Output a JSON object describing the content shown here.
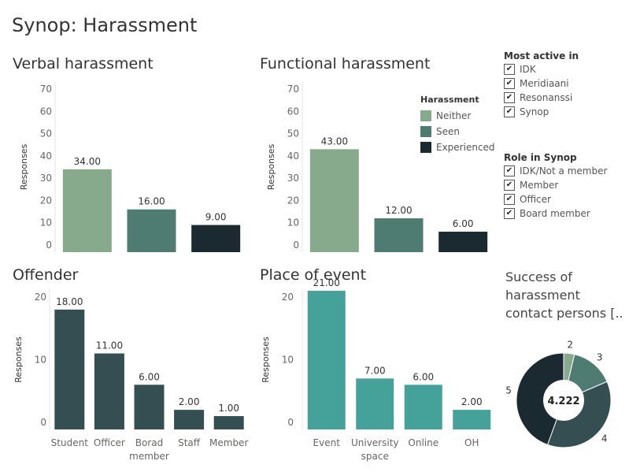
{
  "dashboard": {
    "title": "Synop: Harassment"
  },
  "colors": {
    "neither": "#86aa8b",
    "seen": "#4e7c72",
    "experienced": "#1b2a30",
    "offender_bar": "#354e51",
    "place_bar": "#44a29b",
    "axis_text": "#666666",
    "gridline": "#e6e6e6",
    "donut": [
      "#86aa8b",
      "#4e7c72",
      "#354e51",
      "#1b2a30"
    ]
  },
  "legend": {
    "title": "Harassment",
    "items": [
      {
        "label": "Neither",
        "color": "#86aa8b"
      },
      {
        "label": "Seen",
        "color": "#4e7c72"
      },
      {
        "label": "Experienced",
        "color": "#1b2a30"
      }
    ]
  },
  "filters": {
    "most_active": {
      "title": "Most active in",
      "items": [
        {
          "label": "IDK",
          "checked": true,
          "mark": "✔"
        },
        {
          "label": "Meridiaani",
          "checked": true,
          "mark": "✔"
        },
        {
          "label": "Resonanssi",
          "checked": true,
          "mark": "✔"
        },
        {
          "label": "Synop",
          "checked": true,
          "mark": "✔"
        }
      ]
    },
    "role": {
      "title": "Role in Synop",
      "items": [
        {
          "label": "IDK/Not a member",
          "checked": true,
          "mark": "✔"
        },
        {
          "label": "Member",
          "checked": true,
          "mark": "✔"
        },
        {
          "label": "Officer",
          "checked": true,
          "mark": "✔"
        },
        {
          "label": "Board member",
          "checked": true,
          "mark": "✔"
        }
      ]
    }
  },
  "chart_data": [
    {
      "id": "verbal",
      "type": "bar",
      "title": "Verbal harassment",
      "ylabel": "Responses",
      "xlabel": "",
      "ylim": [
        0,
        70
      ],
      "yticks": [
        0,
        10,
        20,
        30,
        40,
        50,
        60,
        70
      ],
      "categories": [
        "Neither",
        "Seen",
        "Experienced"
      ],
      "values": [
        34,
        16,
        9
      ],
      "data_labels": [
        "34.00",
        "16.00",
        "9.00"
      ],
      "show_category_labels": false,
      "colors": [
        "#86aa8b",
        "#4e7c72",
        "#1b2a30"
      ],
      "grid": false
    },
    {
      "id": "functional",
      "type": "bar",
      "title": "Functional harassment",
      "ylabel": "Responses",
      "xlabel": "",
      "ylim": [
        0,
        70
      ],
      "yticks": [
        0,
        10,
        20,
        30,
        40,
        50,
        60,
        70
      ],
      "categories": [
        "Neither",
        "Seen",
        "Experienced"
      ],
      "values": [
        43,
        12,
        6
      ],
      "data_labels": [
        "43.00",
        "12.00",
        "6.00"
      ],
      "show_category_labels": false,
      "colors": [
        "#86aa8b",
        "#4e7c72",
        "#1b2a30"
      ],
      "legend": "top-right",
      "grid": false
    },
    {
      "id": "offender",
      "type": "bar",
      "title": "Offender",
      "ylabel": "Responses",
      "xlabel": "",
      "ylim": [
        0,
        20
      ],
      "yticks": [
        0,
        10,
        20
      ],
      "categories": [
        [
          "Student"
        ],
        [
          "Officer"
        ],
        [
          "Borad",
          "member"
        ],
        [
          "Staff"
        ],
        [
          "Member"
        ]
      ],
      "values": [
        18,
        11,
        6,
        2,
        1
      ],
      "data_labels": [
        "18.00",
        "11.00",
        "6.00",
        "2.00",
        "1.00"
      ],
      "show_category_labels": true,
      "colors": [
        "#354e51"
      ],
      "grid": false
    },
    {
      "id": "place",
      "type": "bar",
      "title": "Place of event",
      "ylabel": "Responses",
      "xlabel": "",
      "ylim": [
        0,
        20
      ],
      "yticks": [
        0,
        10,
        20
      ],
      "categories": [
        [
          "Event"
        ],
        [
          "University",
          "space"
        ],
        [
          "Online"
        ],
        [
          "OH"
        ]
      ],
      "values": [
        21,
        7,
        6,
        2
      ],
      "data_labels": [
        "21.00",
        "7.00",
        "6.00",
        "2.00"
      ],
      "show_category_labels": true,
      "colors": [
        "#44a29b"
      ],
      "grid": false
    },
    {
      "id": "success",
      "type": "pie",
      "title_lines": [
        "Success of",
        "harassment",
        "contact persons [.."
      ],
      "center_label": "4.222",
      "categories": [
        "2",
        "3",
        "4",
        "5"
      ],
      "values": [
        1,
        4,
        10,
        12
      ],
      "colors": [
        "#86aa8b",
        "#4e7c72",
        "#354e51",
        "#1b2a30"
      ]
    }
  ]
}
